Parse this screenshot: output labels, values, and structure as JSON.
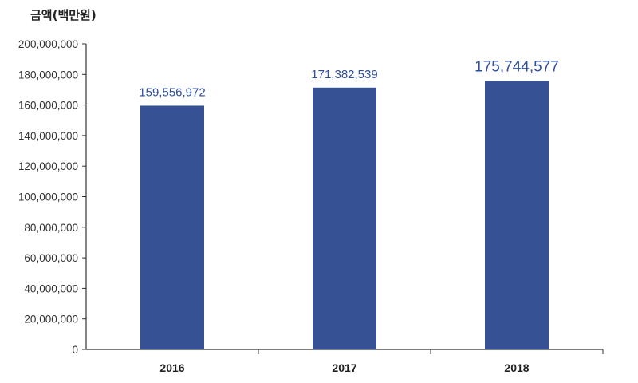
{
  "chart_data": {
    "type": "bar",
    "title": "",
    "ylabel": "금액(백만원)",
    "xlabel": "",
    "categories": [
      "2016",
      "2017",
      "2018"
    ],
    "values": [
      159556972,
      171382539,
      175744577
    ],
    "value_labels": [
      "159,556,972",
      "171,382,539",
      "175,744,577"
    ],
    "ylim": [
      0,
      200000000
    ],
    "yticks": [
      0,
      20000000,
      40000000,
      60000000,
      80000000,
      100000000,
      120000000,
      140000000,
      160000000,
      180000000,
      200000000
    ],
    "ytick_labels": [
      "0",
      "20,000,000",
      "40,000,000",
      "60,000,000",
      "80,000,000",
      "100,000,000",
      "120,000,000",
      "140,000,000",
      "160,000,000",
      "180,000,000",
      "200,000,000"
    ],
    "grid": false,
    "legend": "none",
    "bar_color": "#365194",
    "label_color": "#2f4f9a",
    "axis_color": "#333333"
  }
}
